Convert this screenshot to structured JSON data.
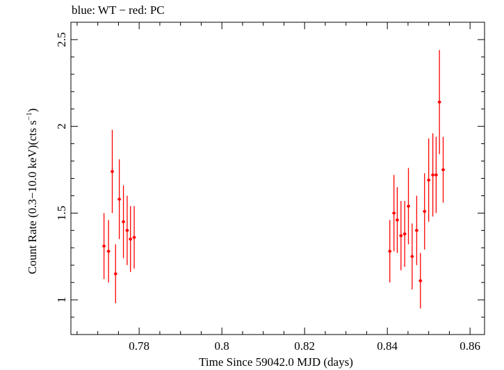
{
  "chart_data": {
    "type": "scatter",
    "title": "blue: WT − red: PC",
    "xlabel": "Time Since 59042.0 MJD (days)",
    "ylabel_main": "Count Rate (0.3−10.0 keV)(cts s",
    "ylabel_sup": "−1",
    "ylabel_close": ")",
    "xlim": [
      0.7635,
      0.8635
    ],
    "ylim": [
      0.8,
      2.6
    ],
    "x_ticks": [
      0.78,
      0.8,
      0.82,
      0.84,
      0.86
    ],
    "x_tick_labels": [
      "0.78",
      "0.8",
      "0.82",
      "0.84",
      "0.86"
    ],
    "y_ticks": [
      1,
      1.5,
      2,
      2.5
    ],
    "y_tick_labels": [
      "1",
      "1.5",
      "2",
      "2.5"
    ],
    "grid": false,
    "series": [
      {
        "color": "#ff0000",
        "points": [
          {
            "x": 0.7715,
            "y": 1.31,
            "yerr": 0.19
          },
          {
            "x": 0.7726,
            "y": 1.28,
            "yerr": 0.18
          },
          {
            "x": 0.7735,
            "y": 1.74,
            "yerr": 0.24
          },
          {
            "x": 0.7743,
            "y": 1.15,
            "yerr": 0.17
          },
          {
            "x": 0.7752,
            "y": 1.58,
            "yerr": 0.23
          },
          {
            "x": 0.7762,
            "y": 1.45,
            "yerr": 0.21
          },
          {
            "x": 0.7771,
            "y": 1.4,
            "yerr": 0.2
          },
          {
            "x": 0.7779,
            "y": 1.35,
            "yerr": 0.19
          },
          {
            "x": 0.7788,
            "y": 1.36,
            "yerr": 0.18
          },
          {
            "x": 0.8406,
            "y": 1.28,
            "yerr": 0.18
          },
          {
            "x": 0.8416,
            "y": 1.5,
            "yerr": 0.22
          },
          {
            "x": 0.8424,
            "y": 1.46,
            "yerr": 0.19
          },
          {
            "x": 0.8433,
            "y": 1.37,
            "yerr": 0.2
          },
          {
            "x": 0.8442,
            "y": 1.38,
            "yerr": 0.19
          },
          {
            "x": 0.8451,
            "y": 1.54,
            "yerr": 0.22
          },
          {
            "x": 0.846,
            "y": 1.25,
            "yerr": 0.19
          },
          {
            "x": 0.8471,
            "y": 1.4,
            "yerr": 0.2
          },
          {
            "x": 0.848,
            "y": 1.11,
            "yerr": 0.16
          },
          {
            "x": 0.849,
            "y": 1.51,
            "yerr": 0.22
          },
          {
            "x": 0.85,
            "y": 1.69,
            "yerr": 0.24
          },
          {
            "x": 0.851,
            "y": 1.72,
            "yerr": 0.24
          },
          {
            "x": 0.8518,
            "y": 1.72,
            "yerr": 0.22
          },
          {
            "x": 0.8526,
            "y": 2.14,
            "yerr": 0.3
          },
          {
            "x": 0.8535,
            "y": 1.75,
            "yerr": 0.19
          }
        ]
      }
    ]
  }
}
